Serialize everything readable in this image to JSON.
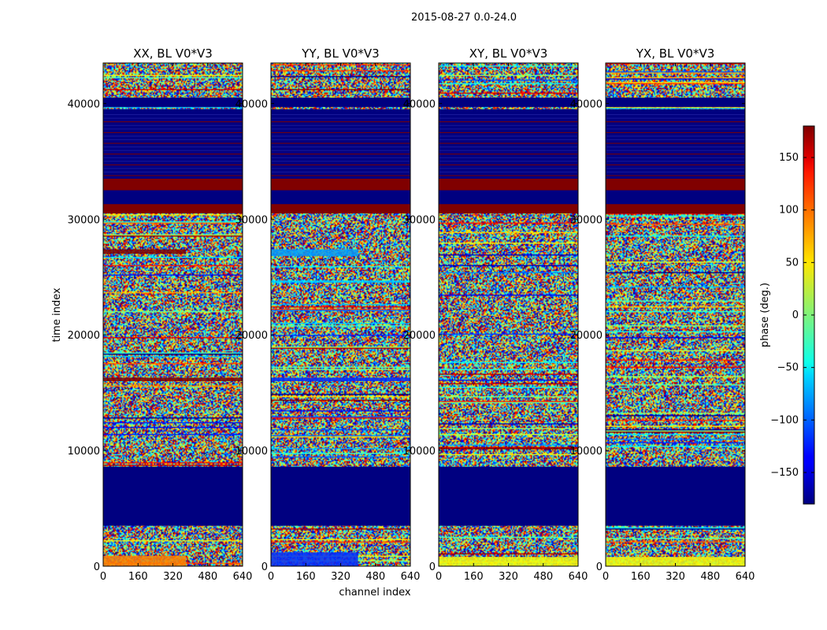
{
  "figure": {
    "suptitle": "2015-08-27 0.0-24.0",
    "xlabel": "channel index",
    "ylabel": "time index",
    "colorbar_label": "phase (deg.)"
  },
  "chart_data": {
    "type": "heatmap",
    "title": "2015-08-27 0.0-24.0",
    "xlabel": "channel index",
    "ylabel": "time index",
    "xlim": [
      0,
      640
    ],
    "ylim": [
      0,
      43500
    ],
    "xticks": [
      0,
      160,
      320,
      480,
      640
    ],
    "yticks": [
      0,
      10000,
      20000,
      30000,
      40000
    ],
    "colorbar": {
      "label": "phase (deg.)",
      "range": [
        -180,
        180
      ],
      "ticks": [
        150,
        100,
        50,
        0,
        -50,
        -100,
        -150
      ],
      "colormap": "jet"
    },
    "panels": [
      {
        "title": "XX, BL V0*V3",
        "uniform_bands": [
          {
            "y0": 3500,
            "y1": 8600,
            "value": -180
          },
          {
            "y0": 30500,
            "y1": 39500,
            "value": -180
          },
          {
            "y0": 30500,
            "y1": 31300,
            "value": 180
          },
          {
            "y0": 32500,
            "y1": 33500,
            "value": 180
          },
          {
            "y0": 39700,
            "y1": 40500,
            "value": -180
          }
        ],
        "features": [
          {
            "y0": 16000,
            "y1": 16300,
            "x0": 0,
            "x1": 640,
            "value": 180
          },
          {
            "y0": 27000,
            "y1": 27400,
            "x0": 0,
            "x1": 380,
            "value": 180
          },
          {
            "y0": 0,
            "y1": 900,
            "x0": 0,
            "x1": 380,
            "value": 90
          }
        ]
      },
      {
        "title": "YY, BL V0*V3",
        "uniform_bands": [
          {
            "y0": 3500,
            "y1": 8600,
            "value": -180
          },
          {
            "y0": 30500,
            "y1": 39500,
            "value": -180
          },
          {
            "y0": 30500,
            "y1": 31300,
            "value": 180
          },
          {
            "y0": 32500,
            "y1": 33500,
            "value": 180
          },
          {
            "y0": 39700,
            "y1": 40500,
            "value": -180
          }
        ],
        "features": [
          {
            "y0": 16000,
            "y1": 16300,
            "x0": 0,
            "x1": 640,
            "value": -120
          },
          {
            "y0": 26800,
            "y1": 27400,
            "x0": 0,
            "x1": 400,
            "value": -80
          },
          {
            "y0": 0,
            "y1": 1200,
            "x0": 0,
            "x1": 400,
            "value": -120
          }
        ]
      },
      {
        "title": "XY, BL V0*V3",
        "uniform_bands": [
          {
            "y0": 3500,
            "y1": 8600,
            "value": -180
          },
          {
            "y0": 30500,
            "y1": 39500,
            "value": -180
          },
          {
            "y0": 30500,
            "y1": 31300,
            "value": 180
          },
          {
            "y0": 32500,
            "y1": 33500,
            "value": 180
          },
          {
            "y0": 39700,
            "y1": 40500,
            "value": -180
          }
        ],
        "features": [
          {
            "y0": 0,
            "y1": 800,
            "x0": 0,
            "x1": 640,
            "value": 40
          }
        ]
      },
      {
        "title": "YX, BL V0*V3",
        "uniform_bands": [
          {
            "y0": 3500,
            "y1": 8600,
            "value": -180
          },
          {
            "y0": 30500,
            "y1": 39500,
            "value": -180
          },
          {
            "y0": 30500,
            "y1": 31300,
            "value": 180
          },
          {
            "y0": 32500,
            "y1": 33500,
            "value": 180
          },
          {
            "y0": 39700,
            "y1": 40500,
            "value": -180
          }
        ],
        "features": [
          {
            "y0": 0,
            "y1": 800,
            "x0": 0,
            "x1": 640,
            "value": 40
          }
        ]
      }
    ]
  }
}
